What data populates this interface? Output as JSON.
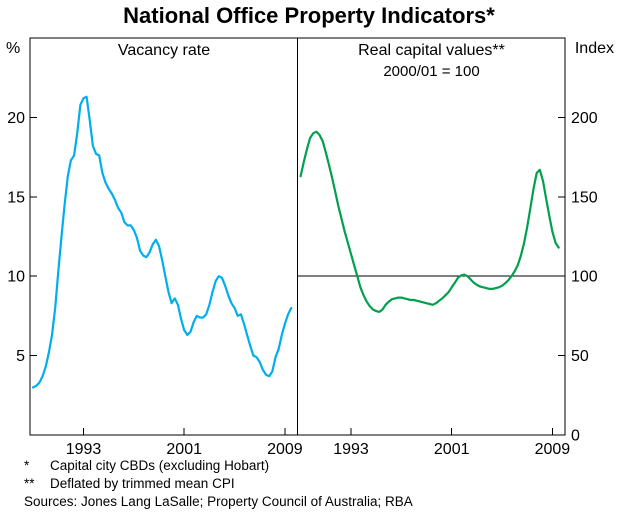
{
  "title": "National Office Property Indicators*",
  "footnotes": [
    {
      "marker": "*",
      "text": "Capital city CBDs (excluding Hobart)"
    },
    {
      "marker": "**",
      "text": "Deflated by trimmed mean CPI"
    }
  ],
  "sources": "Sources: Jones Lang LaSalle; Property Council of Australia; RBA",
  "colors": {
    "vacancy_line": "#00AEEF",
    "capital_line": "#00A04D",
    "axis": "#000000"
  },
  "chart_data": [
    {
      "type": "line",
      "panel": "left",
      "title": "Vacancy rate",
      "ylabel": "%",
      "ylim": [
        0,
        25
      ],
      "yticks": [
        5,
        10,
        15,
        20
      ],
      "xlim": [
        1988.75,
        2010
      ],
      "xticks": [
        1993,
        2001,
        2009
      ],
      "grid": false,
      "legend": "none",
      "x": [
        1989,
        1989.25,
        1989.5,
        1989.75,
        1990,
        1990.25,
        1990.5,
        1990.75,
        1991,
        1991.25,
        1991.5,
        1991.75,
        1992,
        1992.25,
        1992.5,
        1992.75,
        1993,
        1993.25,
        1993.5,
        1993.75,
        1994,
        1994.25,
        1994.5,
        1994.75,
        1995,
        1995.25,
        1995.5,
        1995.75,
        1996,
        1996.25,
        1996.5,
        1996.75,
        1997,
        1997.25,
        1997.5,
        1997.75,
        1998,
        1998.25,
        1998.5,
        1998.75,
        1999,
        1999.25,
        1999.5,
        1999.75,
        2000,
        2000.25,
        2000.5,
        2000.75,
        2001,
        2001.25,
        2001.5,
        2001.75,
        2002,
        2002.25,
        2002.5,
        2002.75,
        2003,
        2003.25,
        2003.5,
        2003.75,
        2004,
        2004.25,
        2004.5,
        2004.75,
        2005,
        2005.25,
        2005.5,
        2005.75,
        2006,
        2006.25,
        2006.5,
        2006.75,
        2007,
        2007.25,
        2007.5,
        2007.75,
        2008,
        2008.25,
        2008.5,
        2008.75,
        2009,
        2009.25,
        2009.5
      ],
      "series": [
        {
          "name": "Vacancy rate",
          "color": "#00AEEF",
          "values": [
            3,
            3.1,
            3.3,
            3.7,
            4.3,
            5.2,
            6.3,
            8,
            10.3,
            12.5,
            14.5,
            16.3,
            17.3,
            17.6,
            19,
            20.8,
            21.2,
            21.3,
            19.8,
            18.2,
            17.7,
            17.6,
            16.5,
            15.9,
            15.5,
            15.2,
            14.8,
            14.3,
            14,
            13.4,
            13.2,
            13.2,
            12.9,
            12.4,
            11.6,
            11.3,
            11.2,
            11.5,
            12,
            12.3,
            11.9,
            11,
            10,
            9,
            8.3,
            8.6,
            8.2,
            7.3,
            6.6,
            6.3,
            6.5,
            7.1,
            7.5,
            7.4,
            7.4,
            7.6,
            8.2,
            9,
            9.7,
            10,
            9.9,
            9.4,
            8.8,
            8.3,
            8,
            7.5,
            7.6,
            7,
            6.3,
            5.6,
            5,
            4.9,
            4.6,
            4.1,
            3.8,
            3.7,
            4,
            4.9,
            5.4,
            6.3,
            7,
            7.6,
            8
          ]
        }
      ]
    },
    {
      "type": "line",
      "panel": "right",
      "title": "Real capital values**",
      "subtitle": "2000/01 = 100",
      "ylabel": "Index",
      "ylim": [
        0,
        250
      ],
      "yticks": [
        0,
        50,
        100,
        150,
        200
      ],
      "xlim": [
        1988.75,
        2010
      ],
      "xticks": [
        1993,
        2001,
        2009
      ],
      "refline": 100,
      "grid": false,
      "legend": "none",
      "x": [
        1989,
        1989.25,
        1989.5,
        1989.75,
        1990,
        1990.25,
        1990.5,
        1990.75,
        1991,
        1991.25,
        1991.5,
        1991.75,
        1992,
        1992.25,
        1992.5,
        1992.75,
        1993,
        1993.25,
        1993.5,
        1993.75,
        1994,
        1994.25,
        1994.5,
        1994.75,
        1995,
        1995.25,
        1995.5,
        1995.75,
        1996,
        1996.25,
        1996.5,
        1996.75,
        1997,
        1997.25,
        1997.5,
        1997.75,
        1998,
        1998.25,
        1998.5,
        1998.75,
        1999,
        1999.25,
        1999.5,
        1999.75,
        2000,
        2000.25,
        2000.5,
        2000.75,
        2001,
        2001.25,
        2001.5,
        2001.75,
        2002,
        2002.25,
        2002.5,
        2002.75,
        2003,
        2003.25,
        2003.5,
        2003.75,
        2004,
        2004.25,
        2004.5,
        2004.75,
        2005,
        2005.25,
        2005.5,
        2005.75,
        2006,
        2006.25,
        2006.5,
        2006.75,
        2007,
        2007.25,
        2007.5,
        2007.75,
        2008,
        2008.25,
        2008.5,
        2008.75,
        2009,
        2009.25,
        2009.5
      ],
      "series": [
        {
          "name": "Real capital values",
          "color": "#00A04D",
          "values": [
            163,
            172,
            180,
            187,
            190,
            191,
            189,
            185,
            178,
            170,
            162,
            153,
            144,
            136,
            128,
            121,
            114,
            107,
            100,
            93,
            88,
            84,
            81,
            79,
            78,
            77.5,
            79,
            82,
            84,
            85.5,
            86,
            86.5,
            86.5,
            86,
            85.5,
            85,
            85,
            84.5,
            84,
            83.5,
            83,
            82.5,
            82,
            83,
            84.5,
            86,
            88,
            90,
            93,
            96,
            99,
            100.5,
            101,
            100,
            98,
            96,
            94.5,
            93.5,
            93,
            92.5,
            92,
            92,
            92.5,
            93,
            94,
            95.5,
            97.5,
            100,
            103,
            107,
            113,
            121,
            131,
            143,
            155,
            165,
            167,
            160,
            149,
            138,
            128,
            121,
            118
          ]
        }
      ]
    }
  ]
}
